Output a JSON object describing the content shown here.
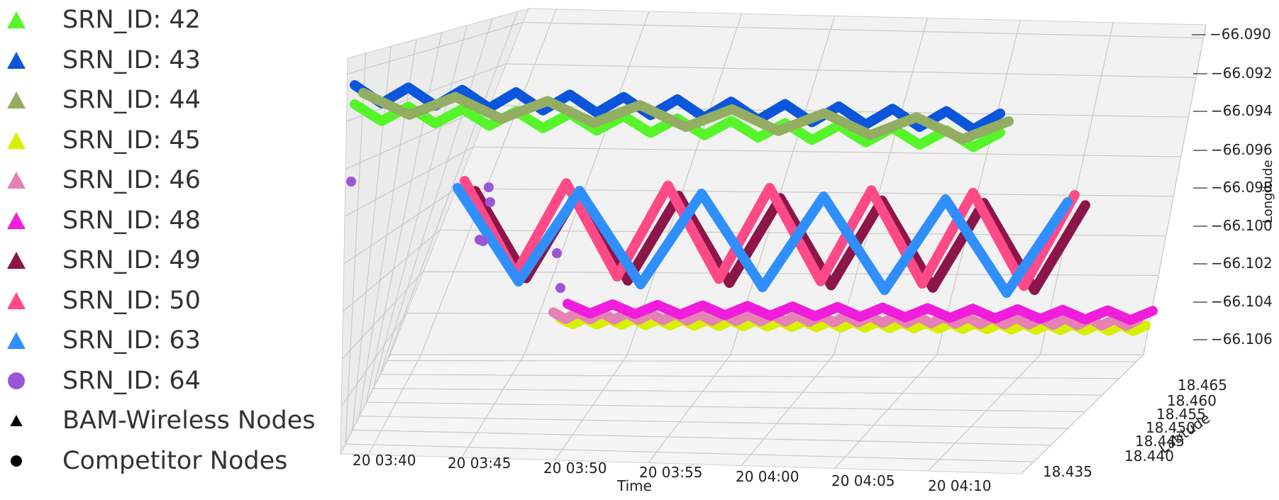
{
  "chart_data": {
    "type": "scatter",
    "projection": "3d",
    "xlabel": "Time",
    "ylabel": "Latitude",
    "zlabel": "Longitude",
    "x_tick_labels": [
      "20 03:40",
      "20 03:45",
      "20 03:50",
      "20 03:55",
      "20 04:00",
      "20 04:05",
      "20 04:10"
    ],
    "y_tick_labels": [
      "18.465",
      "18.460",
      "18.455",
      "18.450",
      "18.445",
      "18.440",
      "18.435"
    ],
    "z_tick_labels": [
      "−66.090",
      "−66.092",
      "−66.094",
      "−66.096",
      "−66.098",
      "−66.100",
      "−66.102",
      "−66.104",
      "−66.106"
    ],
    "grid": true,
    "legend_position": "left",
    "series": [
      {
        "name": "SRN_ID: 42",
        "marker": "triangle",
        "color": "#55f52a",
        "layer": "top",
        "cycles": 12,
        "amplitude": 0.0011
      },
      {
        "name": "SRN_ID: 43",
        "marker": "triangle",
        "color": "#0a55dc",
        "layer": "top",
        "cycles": 12,
        "amplitude": 0.0012
      },
      {
        "name": "SRN_ID: 44",
        "marker": "triangle",
        "color": "#93ad62",
        "layer": "top",
        "cycles": 7,
        "amplitude": 0.0014
      },
      {
        "name": "SRN_ID: 45",
        "marker": "triangle",
        "color": "#d7f000",
        "layer": "bottom",
        "cycles": 24,
        "amplitude": 0.0006
      },
      {
        "name": "SRN_ID: 46",
        "marker": "triangle",
        "color": "#e681b6",
        "layer": "bottom",
        "cycles": 24,
        "amplitude": 0.0007
      },
      {
        "name": "SRN_ID: 48",
        "marker": "triangle",
        "color": "#f01ddc",
        "layer": "bottom",
        "cycles": 13,
        "amplitude": 0.001
      },
      {
        "name": "SRN_ID: 49",
        "marker": "triangle",
        "color": "#8c1549",
        "layer": "middle",
        "cycles": 6,
        "amplitude": 0.0028
      },
      {
        "name": "SRN_ID: 50",
        "marker": "triangle",
        "color": "#ff4a87",
        "layer": "middle",
        "cycles": 6,
        "amplitude": 0.003
      },
      {
        "name": "SRN_ID: 63",
        "marker": "triangle",
        "color": "#2f8fff",
        "layer": "middle",
        "cycles": 5,
        "amplitude": 0.003
      },
      {
        "name": "SRN_ID: 64",
        "marker": "circle",
        "color": "#9b55d6",
        "layer": "scattered",
        "cycles": 0,
        "amplitude": 0
      }
    ],
    "marker_legend": [
      {
        "name": "BAM-Wireless Nodes",
        "marker": "triangle",
        "color": "#000000"
      },
      {
        "name": "Competitor Nodes",
        "marker": "circle",
        "color": "#000000"
      }
    ]
  }
}
